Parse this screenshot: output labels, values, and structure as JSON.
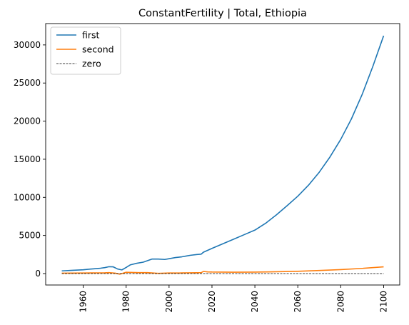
{
  "chart_data": {
    "type": "line",
    "title": "ConstantFertility | Total, Ethiopia",
    "xlabel": "",
    "ylabel": "",
    "xlim": [
      1942.5,
      2107.5
    ],
    "ylim": [
      -1500,
      32800
    ],
    "x_ticks": [
      1960,
      1980,
      2000,
      2020,
      2040,
      2060,
      2080,
      2100
    ],
    "y_ticks": [
      0,
      5000,
      10000,
      15000,
      20000,
      25000,
      30000
    ],
    "grid": false,
    "legend_position": "top-left",
    "series": [
      {
        "name": "first",
        "color": "#1f77b4",
        "style": "solid",
        "x": [
          1950,
          1955,
          1960,
          1965,
          1968,
          1970,
          1972,
          1974,
          1976,
          1978,
          1980,
          1982,
          1985,
          1988,
          1990,
          1992,
          1995,
          1998,
          2000,
          2003,
          2006,
          2008,
          2010,
          2013,
          2015,
          2016,
          2020,
          2025,
          2030,
          2035,
          2040,
          2045,
          2050,
          2055,
          2060,
          2065,
          2070,
          2075,
          2080,
          2085,
          2090,
          2095,
          2100
        ],
        "y": [
          350,
          430,
          500,
          630,
          700,
          780,
          900,
          880,
          600,
          480,
          800,
          1150,
          1350,
          1500,
          1700,
          1900,
          1900,
          1850,
          1950,
          2100,
          2200,
          2300,
          2400,
          2500,
          2550,
          2800,
          3300,
          3900,
          4500,
          5100,
          5700,
          6600,
          7700,
          8900,
          10150,
          11600,
          13300,
          15300,
          17600,
          20300,
          23500,
          27200,
          31200
        ]
      },
      {
        "name": "second",
        "color": "#ff7f0e",
        "style": "solid",
        "x": [
          1950,
          1955,
          1960,
          1965,
          1970,
          1972,
          1975,
          1977,
          1980,
          1983,
          1986,
          1990,
          1995,
          2000,
          2005,
          2010,
          2015,
          2016,
          2018,
          2020,
          2030,
          2040,
          2050,
          2060,
          2070,
          2080,
          2090,
          2100
        ],
        "y": [
          50,
          60,
          80,
          90,
          100,
          120,
          50,
          -80,
          170,
          150,
          120,
          120,
          30,
          80,
          80,
          100,
          120,
          280,
          220,
          200,
          180,
          190,
          240,
          300,
          400,
          520,
          680,
          880
        ]
      },
      {
        "name": "zero",
        "color": "#000000",
        "style": "dashed",
        "x": [
          1950,
          2100
        ],
        "y": [
          0,
          0
        ]
      }
    ]
  }
}
